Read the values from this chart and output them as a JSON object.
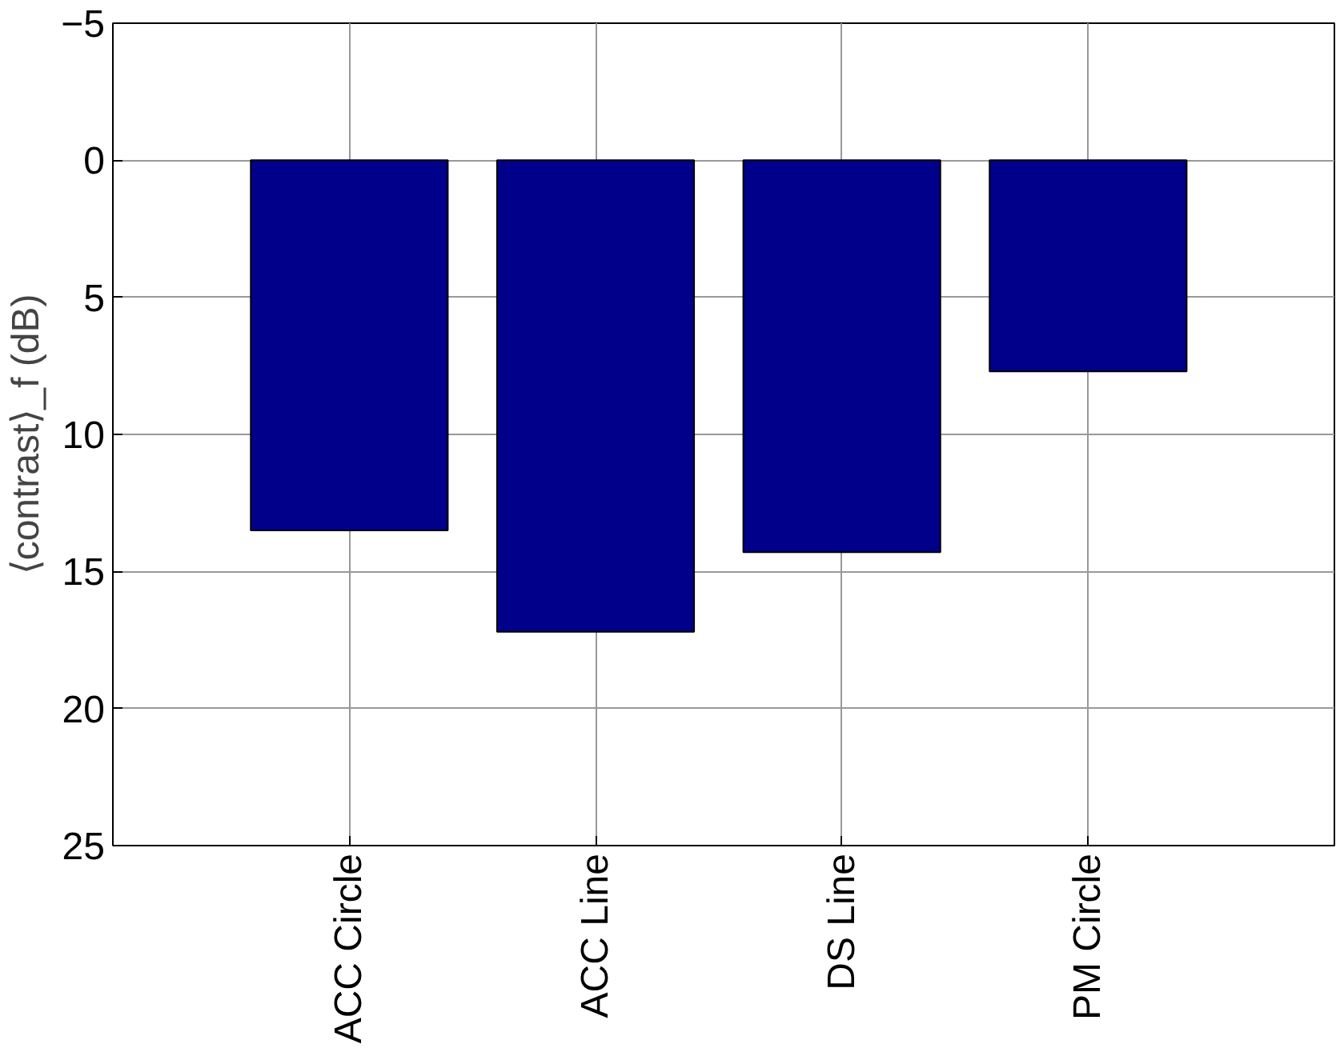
{
  "chart_data": {
    "type": "bar",
    "ylabel": "⟨contrast⟩_f (dB)",
    "categories": [
      "ACC Circle",
      "ACC Line",
      "DS Line",
      "PM Circle"
    ],
    "values": [
      13.5,
      17.2,
      14.3,
      7.7
    ],
    "color": "#00008b",
    "ylim": [
      25,
      -5
    ],
    "yticks": [
      -5,
      0,
      5,
      10,
      15,
      20,
      25
    ],
    "grid": true
  }
}
